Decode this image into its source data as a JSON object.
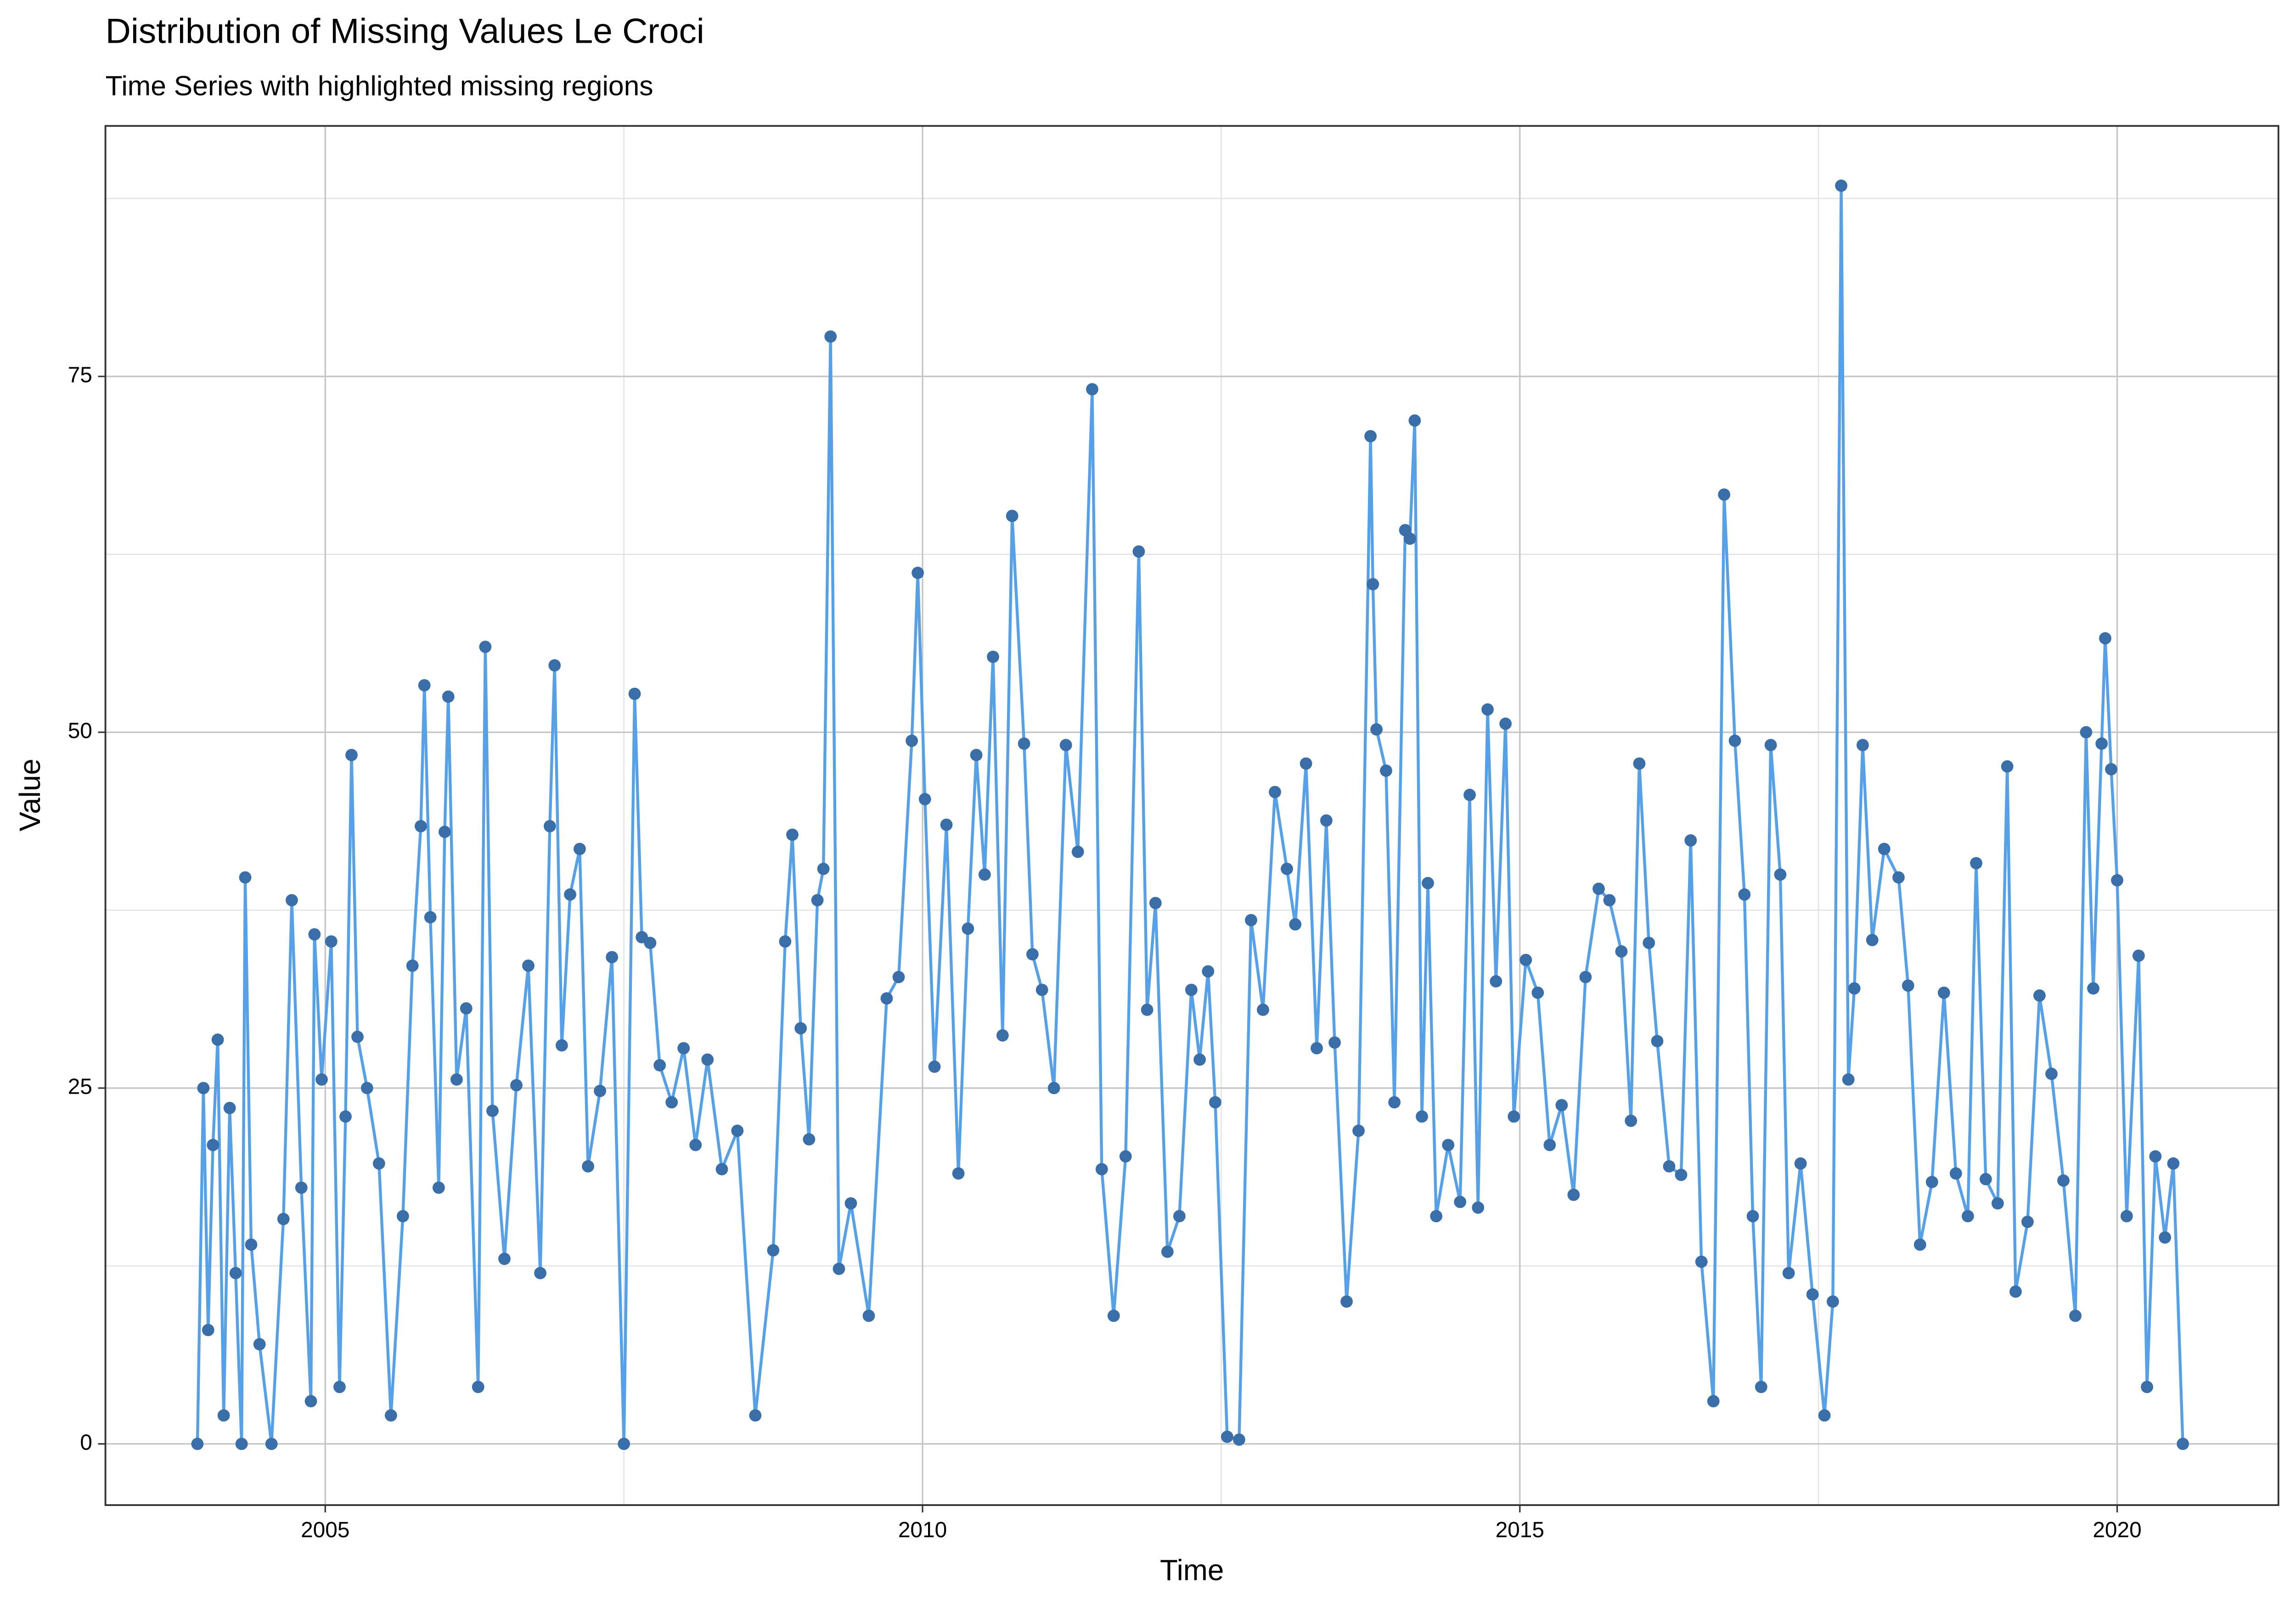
{
  "chart_data": {
    "type": "line",
    "title": "Distribution of Missing Values Le Croci",
    "subtitle": "Time Series with highlighted missing regions",
    "x_label": "Time",
    "y_label": "Value",
    "xlim": [
      2003.16,
      2021.35
    ],
    "xticks": [
      2005,
      2010,
      2015,
      2020
    ],
    "xminor": [
      2007.5,
      2012.5,
      2017.5
    ],
    "ylim": [
      -4.3,
      92.6
    ],
    "yticks": [
      0,
      25,
      50,
      75
    ],
    "yminor": [
      12.5,
      37.5,
      62.5,
      87.5
    ],
    "grid": true,
    "line_color": "#56a0e8",
    "point_color": "#3a6ea8",
    "x": [
      2003.93,
      2003.98,
      2004.02,
      2004.06,
      2004.1,
      2004.15,
      2004.2,
      2004.25,
      2004.3,
      2004.33,
      2004.38,
      2004.45,
      2004.55,
      2004.65,
      2004.72,
      2004.8,
      2004.88,
      2004.91,
      2004.97,
      2005.05,
      2005.12,
      2005.17,
      2005.22,
      2005.27,
      2005.35,
      2005.45,
      2005.55,
      2005.65,
      2005.73,
      2005.8,
      2005.83,
      2005.88,
      2005.95,
      2006.0,
      2006.03,
      2006.1,
      2006.18,
      2006.28,
      2006.34,
      2006.4,
      2006.5,
      2006.6,
      2006.7,
      2006.8,
      2006.88,
      2006.92,
      2006.98,
      2007.05,
      2007.13,
      2007.2,
      2007.3,
      2007.4,
      2007.5,
      2007.59,
      2007.65,
      2007.72,
      2007.8,
      2007.9,
      2008.0,
      2008.1,
      2008.2,
      2008.32,
      2008.45,
      2008.6,
      2008.75,
      2008.85,
      2008.91,
      2008.98,
      2009.05,
      2009.12,
      2009.17,
      2009.23,
      2009.3,
      2009.4,
      2009.55,
      2009.7,
      2009.8,
      2009.91,
      2009.96,
      2010.02,
      2010.1,
      2010.2,
      2010.3,
      2010.38,
      2010.45,
      2010.52,
      2010.59,
      2010.67,
      2010.75,
      2010.85,
      2010.92,
      2011.0,
      2011.1,
      2011.2,
      2011.3,
      2011.42,
      2011.5,
      2011.6,
      2011.7,
      2011.81,
      2011.88,
      2011.95,
      2012.05,
      2012.15,
      2012.25,
      2012.32,
      2012.39,
      2012.45,
      2012.55,
      2012.65,
      2012.75,
      2012.85,
      2012.95,
      2013.05,
      2013.12,
      2013.21,
      2013.3,
      2013.38,
      2013.45,
      2013.55,
      2013.65,
      2013.75,
      2013.77,
      2013.8,
      2013.88,
      2013.95,
      2014.04,
      2014.08,
      2014.12,
      2014.18,
      2014.23,
      2014.3,
      2014.4,
      2014.5,
      2014.58,
      2014.65,
      2014.73,
      2014.8,
      2014.88,
      2014.95,
      2015.05,
      2015.15,
      2015.25,
      2015.35,
      2015.45,
      2015.55,
      2015.66,
      2015.75,
      2015.85,
      2015.93,
      2016.0,
      2016.08,
      2016.15,
      2016.25,
      2016.35,
      2016.43,
      2016.52,
      2016.62,
      2016.71,
      2016.8,
      2016.88,
      2016.95,
      2017.02,
      2017.1,
      2017.18,
      2017.25,
      2017.35,
      2017.45,
      2017.55,
      2017.62,
      2017.69,
      2017.75,
      2017.8,
      2017.87,
      2017.95,
      2018.05,
      2018.17,
      2018.25,
      2018.35,
      2018.45,
      2018.55,
      2018.65,
      2018.75,
      2018.82,
      2018.9,
      2019.0,
      2019.08,
      2019.15,
      2019.25,
      2019.35,
      2019.45,
      2019.55,
      2019.65,
      2019.74,
      2019.8,
      2019.87,
      2019.9,
      2019.95,
      2020.0,
      2020.08,
      2020.18,
      2020.25,
      2020.32,
      2020.4,
      2020.47,
      2020.55
    ],
    "values": [
      0,
      25,
      8,
      21,
      28.4,
      2,
      23.6,
      12,
      0,
      39.8,
      14,
      7,
      0,
      15.8,
      38.2,
      18,
      3,
      35.8,
      25.6,
      35.3,
      4,
      23,
      48.4,
      28.6,
      25,
      19.7,
      2,
      16,
      33.6,
      43.4,
      53.3,
      37,
      18,
      43,
      52.5,
      25.6,
      30.6,
      4,
      56,
      23.4,
      13,
      25.2,
      33.6,
      12,
      43.4,
      54.7,
      28,
      38.6,
      41.8,
      19.5,
      24.8,
      34.2,
      0,
      52.7,
      35.6,
      35.2,
      26.6,
      24,
      27.8,
      21,
      27,
      19.3,
      22,
      2,
      13.6,
      35.3,
      42.8,
      29.2,
      21.4,
      38.2,
      40.4,
      77.8,
      12.3,
      16.9,
      9,
      31.3,
      32.8,
      49.4,
      61.2,
      45.3,
      26.5,
      43.5,
      19,
      36.2,
      48.4,
      40,
      55.3,
      28.7,
      65.2,
      49.2,
      34.4,
      31.9,
      25,
      49.1,
      41.6,
      74.1,
      19.3,
      9,
      20.2,
      62.7,
      30.5,
      38,
      13.5,
      16,
      31.9,
      27,
      33.2,
      24,
      0.5,
      0.3,
      36.8,
      30.5,
      45.8,
      40.4,
      36.5,
      47.8,
      27.8,
      43.8,
      28.2,
      10,
      22,
      70.8,
      60.4,
      50.2,
      47.3,
      24,
      64.2,
      63.6,
      71.9,
      23,
      39.4,
      16,
      21,
      17,
      45.6,
      16.6,
      51.6,
      32.5,
      50.6,
      23,
      34,
      31.7,
      21,
      23.8,
      17.5,
      32.8,
      39,
      38.2,
      34.6,
      22.7,
      47.8,
      35.2,
      28.3,
      19.5,
      18.9,
      42.4,
      12.8,
      3,
      66.7,
      49.4,
      38.6,
      16,
      4,
      49.1,
      40,
      12,
      19.7,
      10.5,
      2,
      10,
      88.4,
      25.6,
      32,
      49.1,
      35.4,
      41.8,
      39.8,
      32.2,
      14,
      18.4,
      31.7,
      19,
      16,
      40.8,
      18.6,
      16.9,
      47.6,
      10.7,
      15.6,
      31.5,
      26,
      18.5,
      9,
      50,
      32,
      49.2,
      56.6,
      47.4,
      39.6,
      16,
      34.3,
      4,
      20.2,
      14.5,
      19.7,
      0
    ]
  }
}
